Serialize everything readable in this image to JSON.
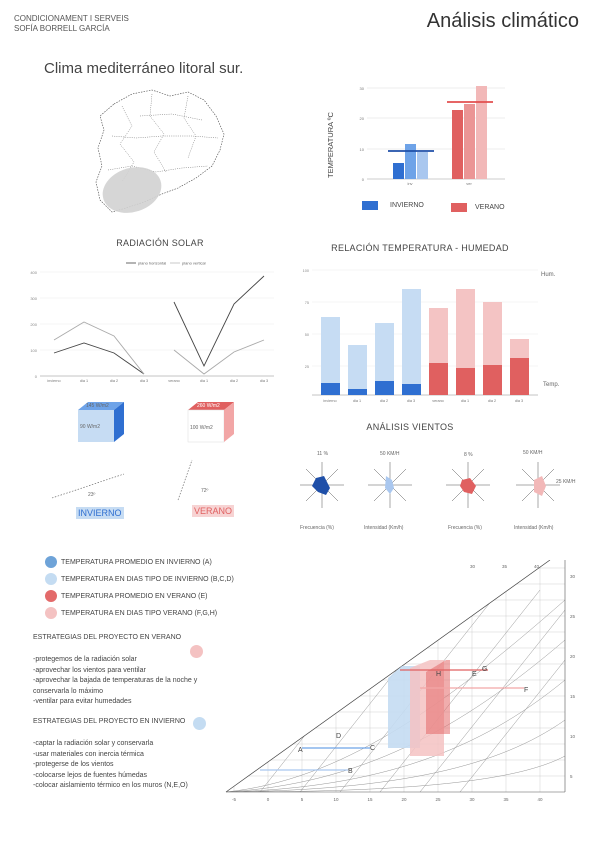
{
  "header": {
    "course": "CONDICIONAMENT I SERVEIS",
    "author": "SOFÍA BORRELL GARCÍA",
    "title": "Análisis climático"
  },
  "climate_title": "Clima mediterráneo litoral sur.",
  "temperature_chart": {
    "ylabel": "TEMPERATURA ºC",
    "yticks": [
      "30",
      "20",
      "10",
      "0"
    ],
    "categories": [
      "inv",
      "ver"
    ],
    "legend": {
      "winter": "INVIERNO",
      "summer": "VERANO"
    },
    "colors": {
      "winter": "#2f6fd1",
      "winter_light": "#a9c7ef",
      "summer": "#e06060",
      "summer_light": "#f2b8b8"
    }
  },
  "solar": {
    "title": "RADIACIÓN SOLAR",
    "legend": [
      "plano horizontal",
      "plano vertical"
    ],
    "yticks": [
      "400",
      "300",
      "200",
      "100",
      "0"
    ],
    "xticks": [
      "invierno",
      "dia 1",
      "dia 2",
      "dia 3",
      "verano",
      "dia 1",
      "dia 2",
      "dia 3"
    ]
  },
  "humidity": {
    "title": "RELACIÓN TEMPERATURA - HUMEDAD",
    "hum_label": "Hum.",
    "temp_label": "Temp.",
    "xticks": [
      "invierno",
      "dia 1",
      "dia 2",
      "dia 3",
      "verano",
      "dia 1",
      "dia 2",
      "dia 3"
    ],
    "yticks": [
      "100",
      "75",
      "50",
      "25"
    ]
  },
  "boxes": {
    "winter_top": "145 W/m2",
    "winter_side": "90 W/m2",
    "summer_top": "260 W/m2",
    "summer_side": "100 W/m2",
    "winter_angle": "23º",
    "summer_angle": "72º",
    "winter_label": "INVIERNO",
    "summer_label": "VERANO"
  },
  "winds": {
    "title": "ANÁLISIS VIENTOS",
    "roses": [
      {
        "top": "11 %",
        "bottom": "Frecuencia (%)"
      },
      {
        "top": "50 KM/H",
        "bottom": "Intensidad (Km/h)"
      },
      {
        "top": "8 %",
        "bottom": "Frecuencia (%)"
      },
      {
        "top": "50 KM/H",
        "side": "25 KM/H",
        "bottom": "Intensidad (Km/h)"
      }
    ]
  },
  "legend": [
    {
      "label": "TEMPERATURA PROMEDIO EN INVIERNO (A)",
      "color": "#6ea3d8"
    },
    {
      "label": "TEMPERATURA EN DIAS TIPO DE INVIERNO (B,C,D)",
      "color": "#c4dcf2"
    },
    {
      "label": "TEMPERATURA PROMEDIO EN VERANO (E)",
      "color": "#e36a6a"
    },
    {
      "label": "TEMPERATURA EN DIAS TIPO VERANO (F,G,H)",
      "color": "#f4c2c2"
    }
  ],
  "summer_strategies": {
    "title": "ESTRATEGIAS DEL PROYECTO EN VERANO",
    "items": [
      "-protegemos de la radiación solar",
      "-aprovechar los vientos para ventilar",
      "-aprovechar la bajada de temperaturas de la noche y",
      "conservarla lo máximo",
      "-ventilar para evitar humedades"
    ]
  },
  "winter_strategies": {
    "title": "ESTRATEGIAS DEL PROYECTO EN INVIERNO",
    "items": [
      "-captar la radiación solar y conservarla",
      "-usar materiales con inercia térmica",
      "-protegerse de los vientos",
      "-colocarse lejos de fuentes húmedas",
      "-colocar aislamiento térmico en los muros (N,E,O)"
    ]
  },
  "psychro": {
    "points": [
      "A",
      "B",
      "C",
      "D",
      "E",
      "F",
      "G",
      "H"
    ],
    "xticks": [
      "-5",
      "0",
      "5",
      "10",
      "15",
      "20",
      "25",
      "30",
      "35",
      "40"
    ],
    "top_ticks": [
      "30",
      "35",
      "40"
    ],
    "right_ticks": [
      "30",
      "25",
      "20",
      "15",
      "10",
      "5"
    ]
  }
}
